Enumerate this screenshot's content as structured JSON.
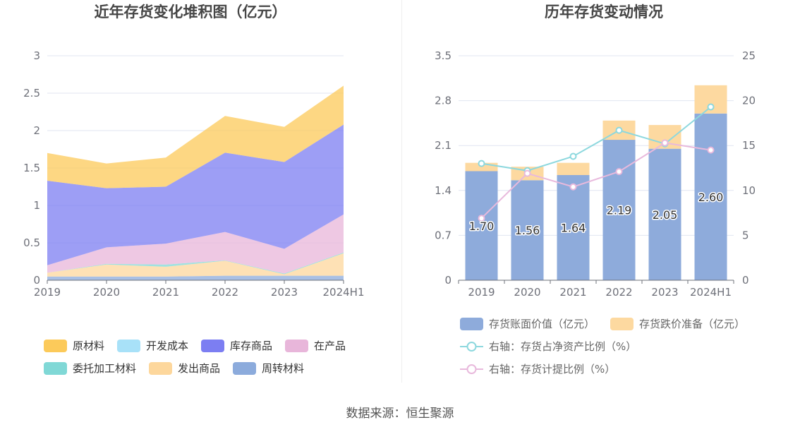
{
  "footer": {
    "source": "数据来源：恒生聚源"
  },
  "chart_data": [
    {
      "type": "area",
      "stacked": true,
      "title": "近年存货变化堆积图（亿元）",
      "categories": [
        "2019",
        "2020",
        "2021",
        "2022",
        "2023",
        "2024H1"
      ],
      "ylim": [
        0,
        3
      ],
      "yticks": [
        "0",
        "0.5",
        "1",
        "1.5",
        "2",
        "2.5",
        "3"
      ],
      "grid": true,
      "legend_position": "bottom",
      "series": [
        {
          "name": "原材料",
          "color": "#fcca5a",
          "values": [
            0.37,
            0.33,
            0.39,
            0.49,
            0.47,
            0.52
          ]
        },
        {
          "name": "开发成本",
          "color": "#a8e1f8",
          "values": [
            0,
            0,
            0,
            0,
            0,
            0
          ]
        },
        {
          "name": "库存商品",
          "color": "#7c7ef2",
          "values": [
            1.13,
            0.79,
            0.76,
            1.06,
            1.16,
            1.2
          ]
        },
        {
          "name": "在产品",
          "color": "#e8b6da",
          "values": [
            0.1,
            0.22,
            0.28,
            0.38,
            0.33,
            0.51
          ]
        },
        {
          "name": "委托加工材料",
          "color": "#80d8d6",
          "values": [
            0,
            0.01,
            0.03,
            0.005,
            0.01,
            0.01
          ]
        },
        {
          "name": "发出商品",
          "color": "#fdd79c",
          "values": [
            0.05,
            0.16,
            0.13,
            0.2,
            0.02,
            0.3
          ]
        },
        {
          "name": "周转材料",
          "color": "#8cabdc",
          "values": [
            0.05,
            0.05,
            0.05,
            0.06,
            0.06,
            0.06
          ]
        }
      ]
    },
    {
      "type": "bar",
      "stacked": true,
      "title": "历年存货变动情况",
      "categories": [
        "2019",
        "2020",
        "2021",
        "2022",
        "2023",
        "2024H1"
      ],
      "ylim": [
        0,
        3.5
      ],
      "yticks": [
        "0",
        "0.7",
        "1.4",
        "2.1",
        "2.8",
        "3.5"
      ],
      "y2lim": [
        0,
        25
      ],
      "y2ticks": [
        "0",
        "5",
        "10",
        "15",
        "20",
        "25"
      ],
      "grid": true,
      "legend_position": "bottom",
      "series": [
        {
          "name": "存货账面价值（亿元）",
          "type": "bar",
          "color": "#8eabdb",
          "values": [
            1.7,
            1.56,
            1.64,
            2.19,
            2.05,
            2.6
          ],
          "labels": [
            "1.70",
            "1.56",
            "1.64",
            "2.19",
            "2.05",
            "2.60"
          ]
        },
        {
          "name": "存货跌价准备（亿元）",
          "type": "bar",
          "color": "#fdd9a0",
          "values": [
            0.13,
            0.21,
            0.19,
            0.3,
            0.37,
            0.44
          ]
        },
        {
          "name": "右轴：存货占净资产比例（%）",
          "type": "line",
          "color": "#8dd8de",
          "values": [
            13.0,
            12.2,
            13.8,
            16.7,
            15.2,
            19.3
          ]
        },
        {
          "name": "右轴：存货计提比例（%）",
          "type": "line",
          "color": "#e8b9dc",
          "values": [
            6.9,
            11.9,
            10.4,
            12.1,
            15.3,
            14.5
          ]
        }
      ]
    }
  ]
}
